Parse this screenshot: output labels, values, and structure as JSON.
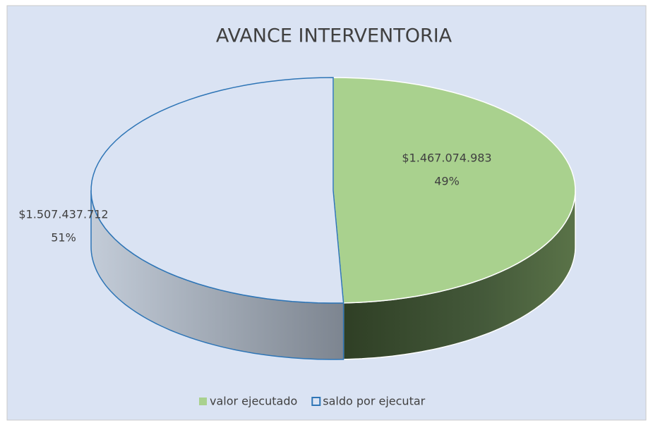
{
  "chart_data": {
    "type": "pie3d",
    "title": "AVANCE INTERVENTORIA",
    "categories": [
      "valor ejecutado",
      "saldo por ejecutar"
    ],
    "values": [
      1467074983,
      1507437712
    ],
    "value_labels": [
      "$1.467.074.983",
      "$1.507.437.712"
    ],
    "percent_labels": [
      "49%",
      "51%"
    ],
    "colors": [
      "#a9d18e",
      "#dae3f3"
    ],
    "outline_color": "#2e75b6",
    "legend": "bottom"
  }
}
